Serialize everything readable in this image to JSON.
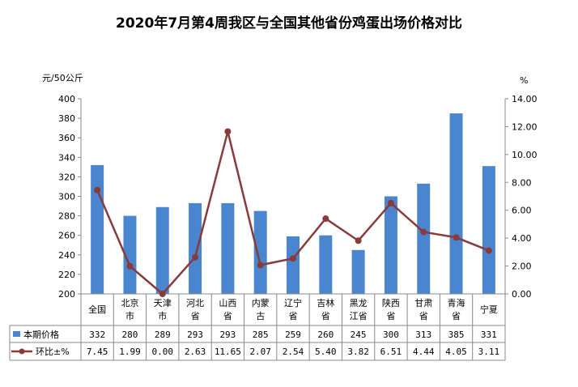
{
  "chart_data": {
    "type": "bar",
    "title": "2020年7月第4周我区与全国其他省份鸡蛋出场价格对比",
    "categories": [
      [
        "全国"
      ],
      [
        "北京",
        "市"
      ],
      [
        "天津",
        "市"
      ],
      [
        "河北",
        "省"
      ],
      [
        "山西",
        "省"
      ],
      [
        "内蒙",
        "古"
      ],
      [
        "辽宁",
        "省"
      ],
      [
        "吉林",
        "省"
      ],
      [
        "黑龙",
        "江省"
      ],
      [
        "陕西",
        "省"
      ],
      [
        "甘肃",
        "省"
      ],
      [
        "青海",
        "省"
      ],
      [
        "宁夏"
      ]
    ],
    "y_left": {
      "unit": "元/50公斤",
      "min": 200,
      "max": 400,
      "step": 20,
      "ticks": [
        "200",
        "220",
        "240",
        "260",
        "280",
        "300",
        "320",
        "340",
        "360",
        "380",
        "400"
      ]
    },
    "y_right": {
      "unit": "%",
      "min": 0,
      "max": 14,
      "step": 2,
      "ticks": [
        "0.00",
        "2.00",
        "4.00",
        "6.00",
        "8.00",
        "10.00",
        "12.00",
        "14.00"
      ]
    },
    "series": [
      {
        "name": "本期价格",
        "type": "bar",
        "axis": "left",
        "color": "#4a86d0",
        "values": [
          332,
          280,
          289,
          293,
          293,
          285,
          259,
          260,
          245,
          300,
          313,
          385,
          331
        ],
        "labels": [
          "332",
          "280",
          "289",
          "293",
          "293",
          "285",
          "259",
          "260",
          "245",
          "300",
          "313",
          "385",
          "331"
        ]
      },
      {
        "name": "环比±%",
        "type": "line",
        "axis": "right",
        "color": "#8b3a3a",
        "values": [
          7.45,
          1.99,
          0.0,
          2.63,
          11.65,
          2.07,
          2.54,
          5.4,
          3.82,
          6.51,
          4.44,
          4.05,
          3.11
        ],
        "labels": [
          "7.45",
          "1.99",
          "0.00",
          "2.63",
          "11.65",
          "2.07",
          "2.54",
          "5.40",
          "3.82",
          "6.51",
          "4.44",
          "4.05",
          "3.11"
        ]
      }
    ],
    "grid": false,
    "legend": "data-table"
  }
}
